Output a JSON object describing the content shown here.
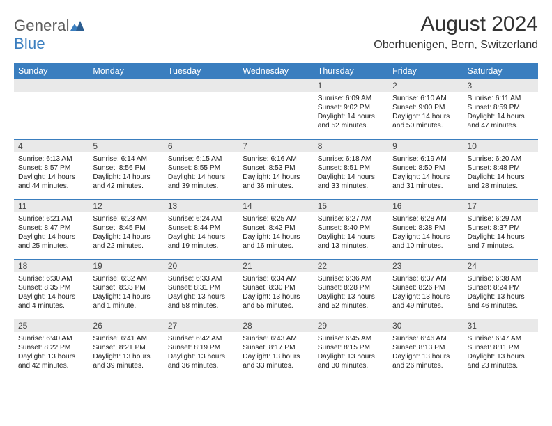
{
  "brand": {
    "name_part1": "General",
    "name_part2": "Blue"
  },
  "title": "August 2024",
  "location": "Oberhuenigen, Bern, Switzerland",
  "colors": {
    "header_bg": "#3a7ebf",
    "header_text": "#ffffff",
    "daynum_bg": "#e9e9e9",
    "border": "#3a7ebf",
    "text": "#222222",
    "brand_gray": "#5a5a5a",
    "brand_blue": "#3a7ebf"
  },
  "dayNames": [
    "Sunday",
    "Monday",
    "Tuesday",
    "Wednesday",
    "Thursday",
    "Friday",
    "Saturday"
  ],
  "firstWeekday": 4,
  "daysInMonth": 31,
  "days": {
    "1": {
      "sunrise": "6:09 AM",
      "sunset": "9:02 PM",
      "daylight": "14 hours and 52 minutes."
    },
    "2": {
      "sunrise": "6:10 AM",
      "sunset": "9:00 PM",
      "daylight": "14 hours and 50 minutes."
    },
    "3": {
      "sunrise": "6:11 AM",
      "sunset": "8:59 PM",
      "daylight": "14 hours and 47 minutes."
    },
    "4": {
      "sunrise": "6:13 AM",
      "sunset": "8:57 PM",
      "daylight": "14 hours and 44 minutes."
    },
    "5": {
      "sunrise": "6:14 AM",
      "sunset": "8:56 PM",
      "daylight": "14 hours and 42 minutes."
    },
    "6": {
      "sunrise": "6:15 AM",
      "sunset": "8:55 PM",
      "daylight": "14 hours and 39 minutes."
    },
    "7": {
      "sunrise": "6:16 AM",
      "sunset": "8:53 PM",
      "daylight": "14 hours and 36 minutes."
    },
    "8": {
      "sunrise": "6:18 AM",
      "sunset": "8:51 PM",
      "daylight": "14 hours and 33 minutes."
    },
    "9": {
      "sunrise": "6:19 AM",
      "sunset": "8:50 PM",
      "daylight": "14 hours and 31 minutes."
    },
    "10": {
      "sunrise": "6:20 AM",
      "sunset": "8:48 PM",
      "daylight": "14 hours and 28 minutes."
    },
    "11": {
      "sunrise": "6:21 AM",
      "sunset": "8:47 PM",
      "daylight": "14 hours and 25 minutes."
    },
    "12": {
      "sunrise": "6:23 AM",
      "sunset": "8:45 PM",
      "daylight": "14 hours and 22 minutes."
    },
    "13": {
      "sunrise": "6:24 AM",
      "sunset": "8:44 PM",
      "daylight": "14 hours and 19 minutes."
    },
    "14": {
      "sunrise": "6:25 AM",
      "sunset": "8:42 PM",
      "daylight": "14 hours and 16 minutes."
    },
    "15": {
      "sunrise": "6:27 AM",
      "sunset": "8:40 PM",
      "daylight": "14 hours and 13 minutes."
    },
    "16": {
      "sunrise": "6:28 AM",
      "sunset": "8:38 PM",
      "daylight": "14 hours and 10 minutes."
    },
    "17": {
      "sunrise": "6:29 AM",
      "sunset": "8:37 PM",
      "daylight": "14 hours and 7 minutes."
    },
    "18": {
      "sunrise": "6:30 AM",
      "sunset": "8:35 PM",
      "daylight": "14 hours and 4 minutes."
    },
    "19": {
      "sunrise": "6:32 AM",
      "sunset": "8:33 PM",
      "daylight": "14 hours and 1 minute."
    },
    "20": {
      "sunrise": "6:33 AM",
      "sunset": "8:31 PM",
      "daylight": "13 hours and 58 minutes."
    },
    "21": {
      "sunrise": "6:34 AM",
      "sunset": "8:30 PM",
      "daylight": "13 hours and 55 minutes."
    },
    "22": {
      "sunrise": "6:36 AM",
      "sunset": "8:28 PM",
      "daylight": "13 hours and 52 minutes."
    },
    "23": {
      "sunrise": "6:37 AM",
      "sunset": "8:26 PM",
      "daylight": "13 hours and 49 minutes."
    },
    "24": {
      "sunrise": "6:38 AM",
      "sunset": "8:24 PM",
      "daylight": "13 hours and 46 minutes."
    },
    "25": {
      "sunrise": "6:40 AM",
      "sunset": "8:22 PM",
      "daylight": "13 hours and 42 minutes."
    },
    "26": {
      "sunrise": "6:41 AM",
      "sunset": "8:21 PM",
      "daylight": "13 hours and 39 minutes."
    },
    "27": {
      "sunrise": "6:42 AM",
      "sunset": "8:19 PM",
      "daylight": "13 hours and 36 minutes."
    },
    "28": {
      "sunrise": "6:43 AM",
      "sunset": "8:17 PM",
      "daylight": "13 hours and 33 minutes."
    },
    "29": {
      "sunrise": "6:45 AM",
      "sunset": "8:15 PM",
      "daylight": "13 hours and 30 minutes."
    },
    "30": {
      "sunrise": "6:46 AM",
      "sunset": "8:13 PM",
      "daylight": "13 hours and 26 minutes."
    },
    "31": {
      "sunrise": "6:47 AM",
      "sunset": "8:11 PM",
      "daylight": "13 hours and 23 minutes."
    }
  },
  "labels": {
    "sunrise": "Sunrise:",
    "sunset": "Sunset:",
    "daylight": "Daylight:"
  }
}
